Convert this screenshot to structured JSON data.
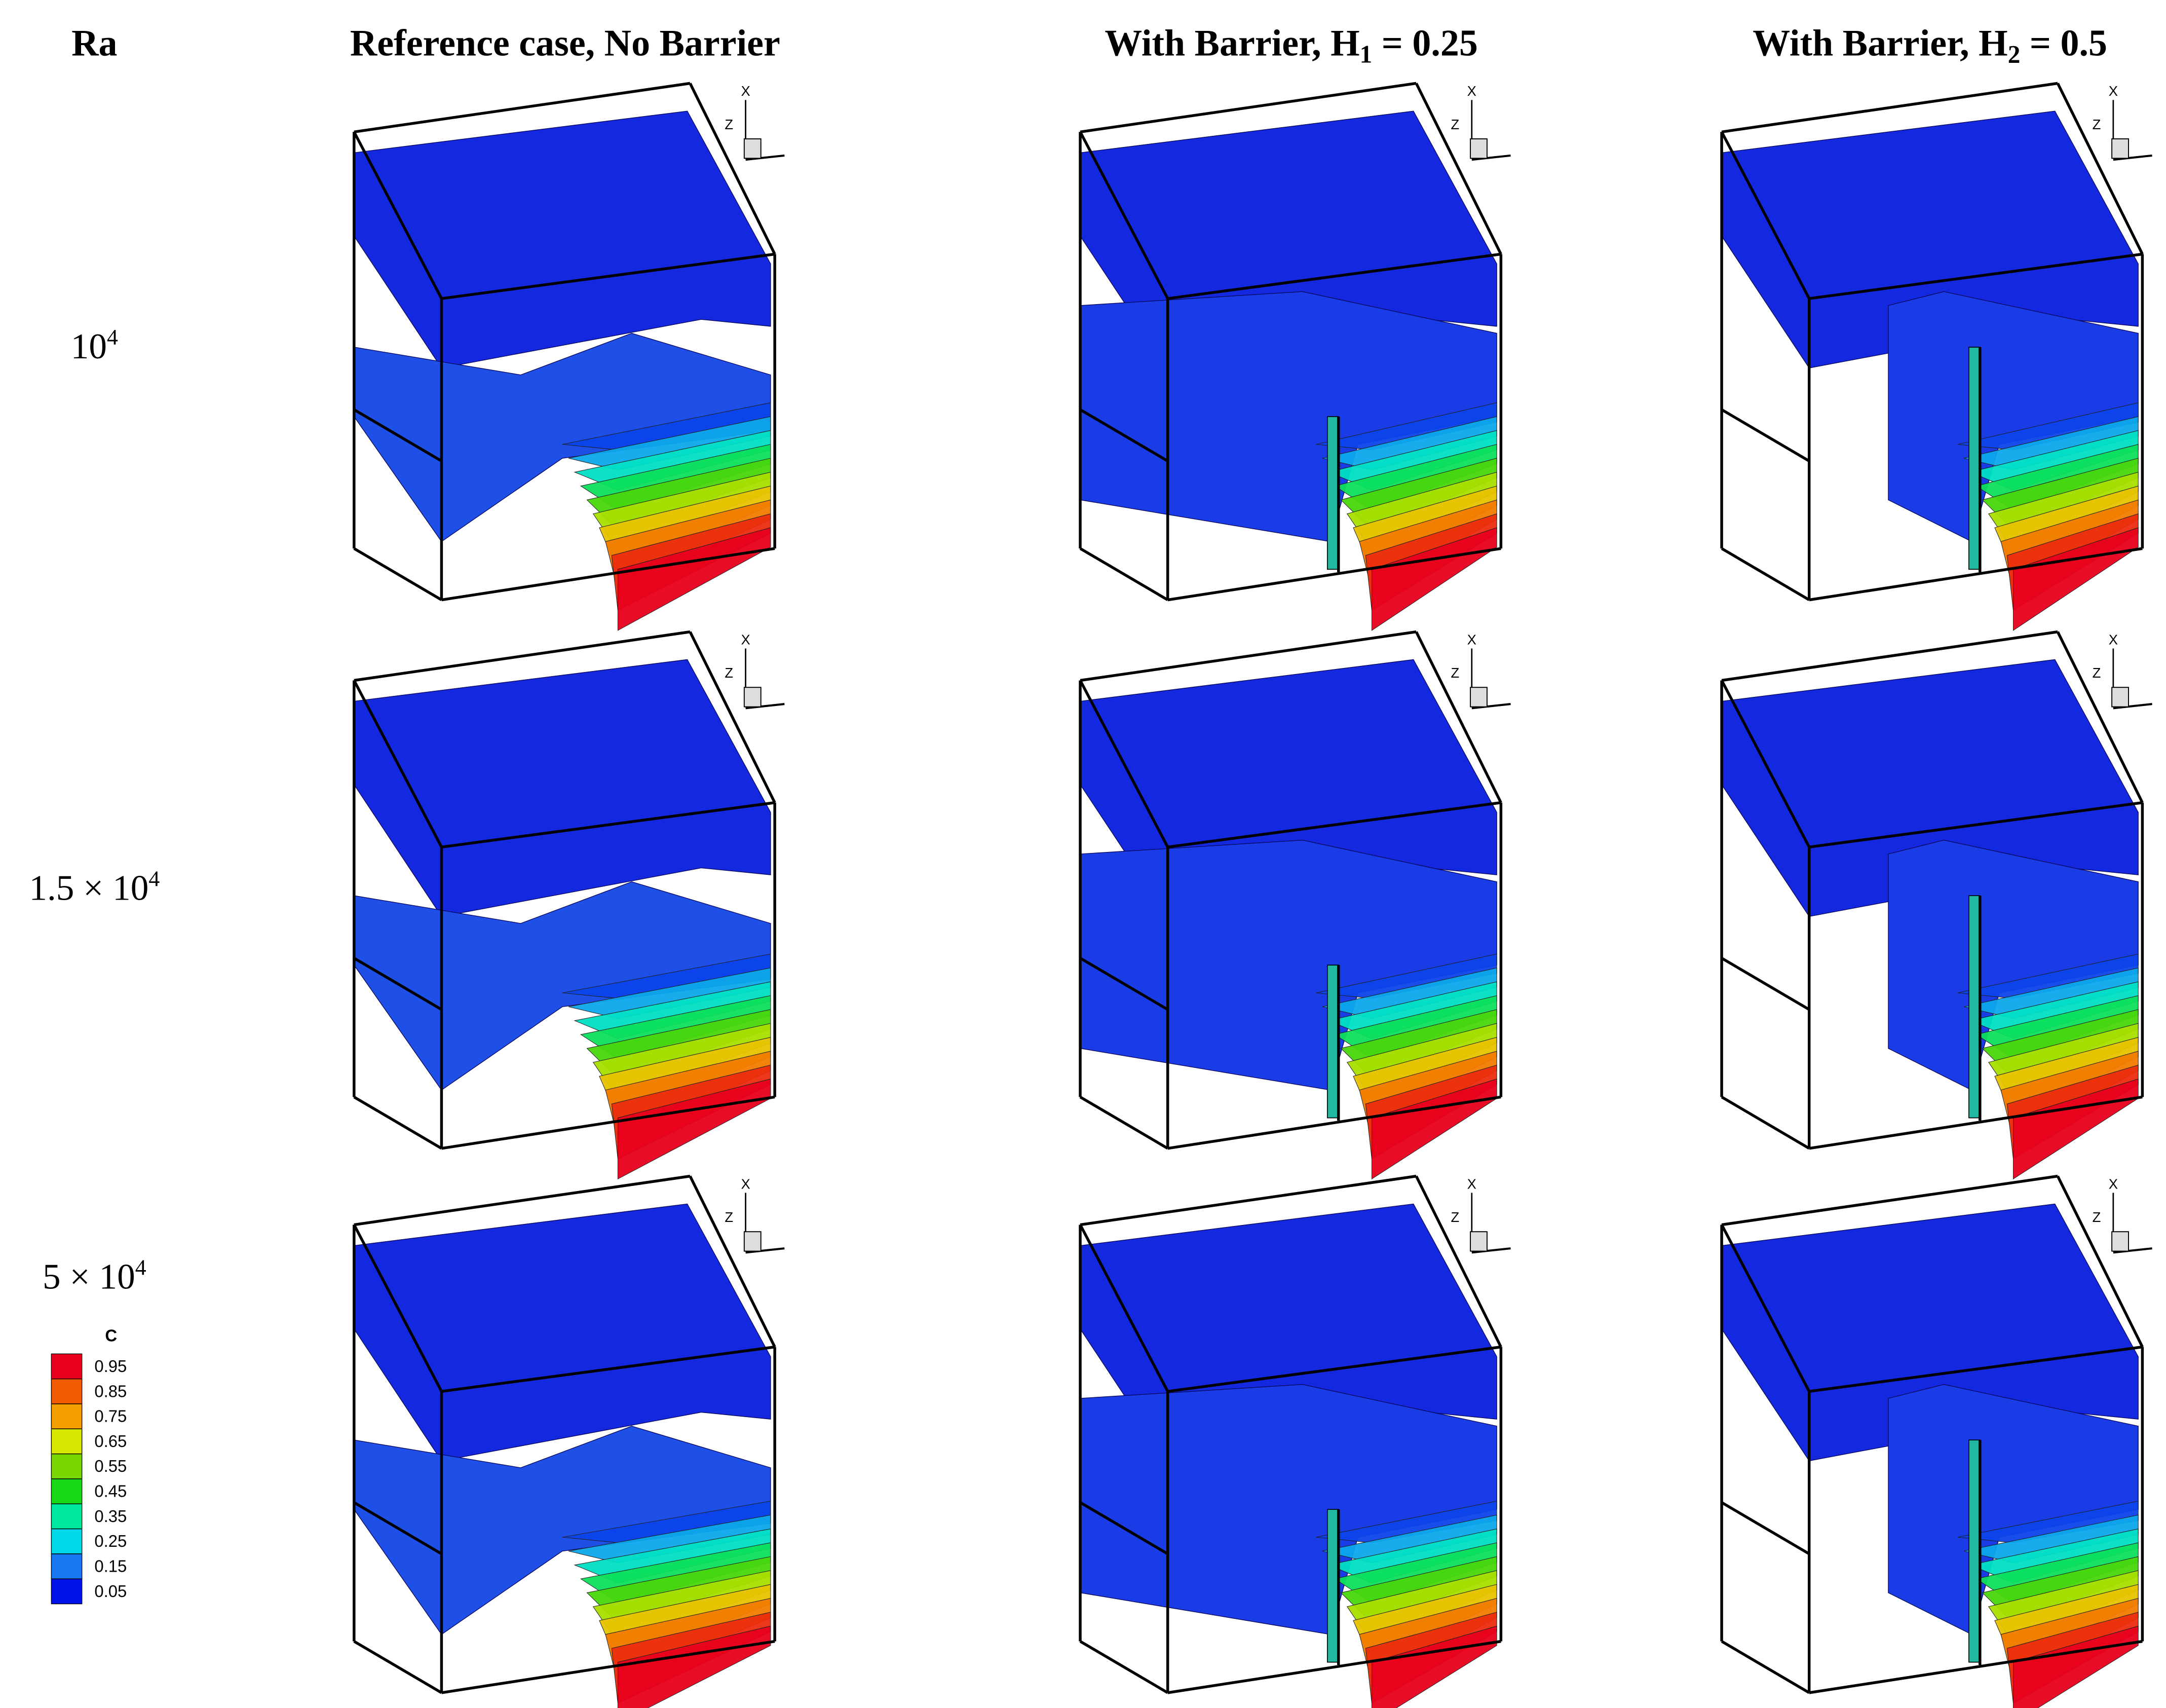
{
  "header": {
    "corner": "Ra",
    "columns": [
      {
        "text": "Reference case, No Barrier"
      },
      {
        "text": "With Barrier, H",
        "sub": "1",
        "after": " = 0.25"
      },
      {
        "text": "With Barrier, H",
        "sub": "2",
        "after": " = 0.5"
      }
    ]
  },
  "rows": [
    {
      "text": "10",
      "sup": "4"
    },
    {
      "text": "1.5 × 10",
      "sup": "4"
    },
    {
      "text": "5 × 10",
      "sup": "4"
    }
  ],
  "triad": {
    "x": "X",
    "z": "Z"
  },
  "legend": {
    "title": "C",
    "levels": [
      0.95,
      0.85,
      0.75,
      0.65,
      0.55,
      0.45,
      0.35,
      0.25,
      0.15,
      0.05
    ],
    "colors": [
      "#e8001c",
      "#f05a00",
      "#f5a000",
      "#d8e800",
      "#78d800",
      "#18d818",
      "#00e8a0",
      "#00d8e8",
      "#1878f0",
      "#0010e8"
    ]
  }
}
